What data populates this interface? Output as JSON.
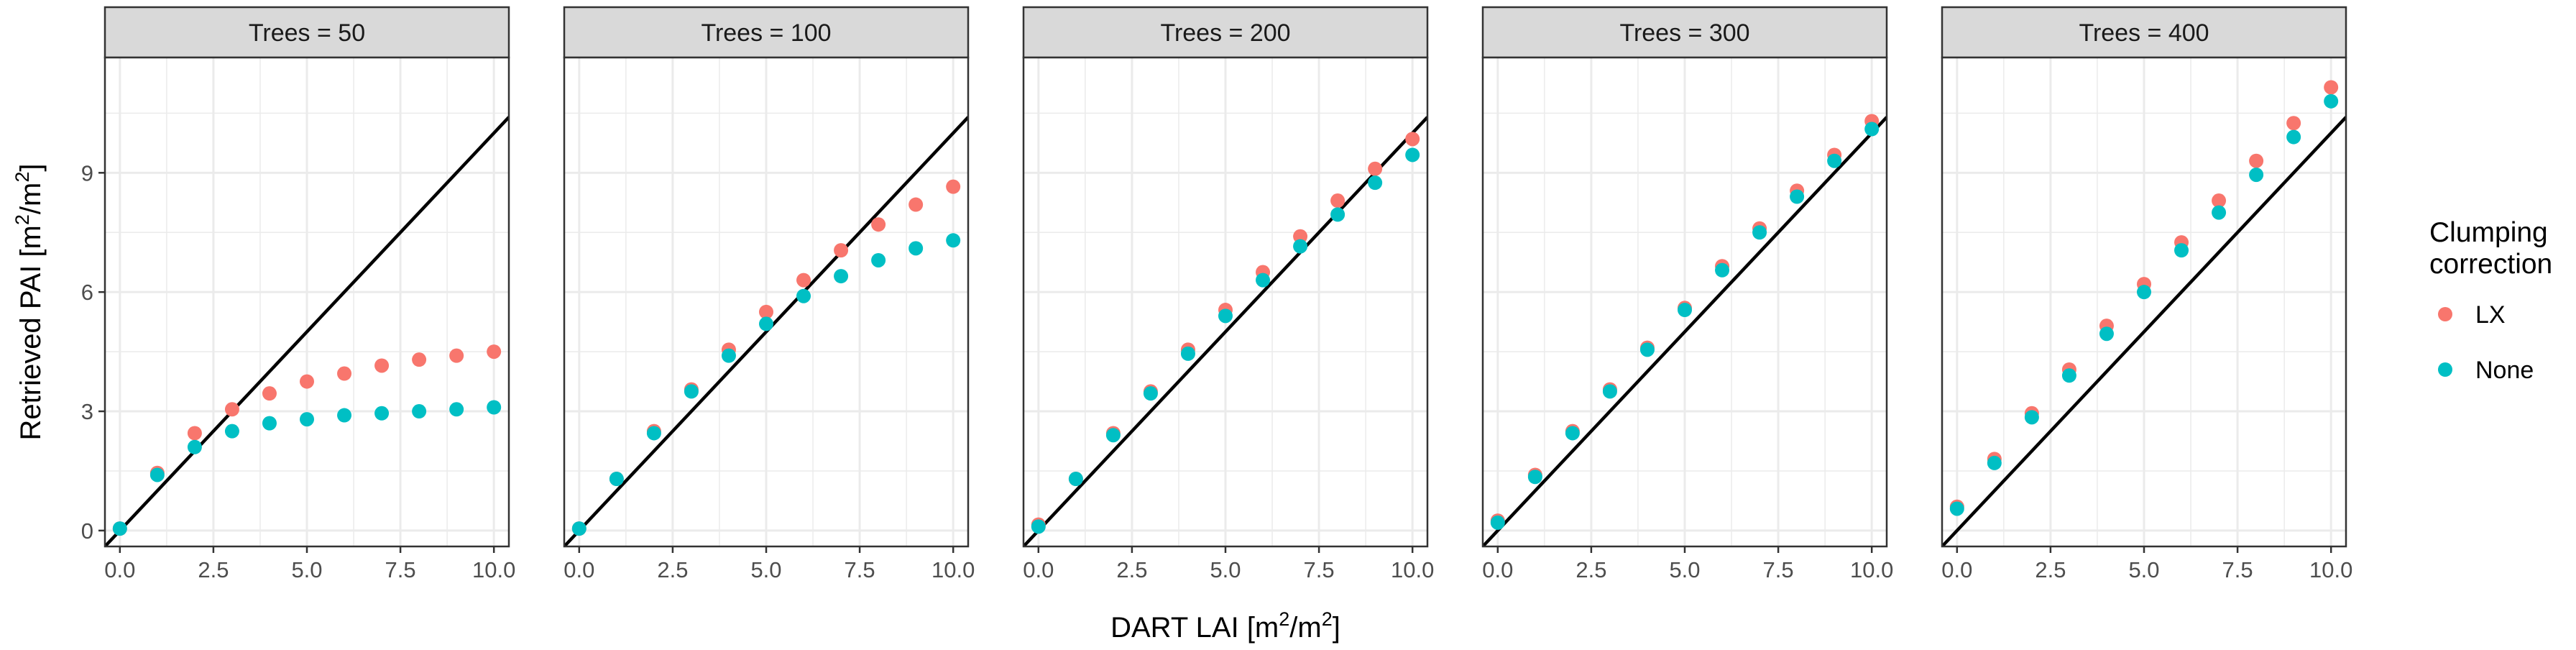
{
  "chart_data": {
    "type": "scatter",
    "facet_prefix": "Trees = ",
    "xlabel": "DART LAI [m",
    "ylabel": "Retrieved PAI [m",
    "unit_sup": "2",
    "unit_mid": "/m",
    "unit_end": "]",
    "xlim": [
      -0.4,
      10.4
    ],
    "ylim": [
      -0.4,
      11.9
    ],
    "x_ticks": [
      0,
      2.5,
      5,
      7.5,
      10
    ],
    "x_tick_labels": [
      "0.0",
      "2.5",
      "5.0",
      "7.5",
      "10.0"
    ],
    "y_ticks": [
      0,
      3,
      6,
      9
    ],
    "y_tick_labels": [
      "0",
      "3",
      "6",
      "9"
    ],
    "reference_line": "1:1",
    "grid": true,
    "legend": {
      "title_line1": "Clumping",
      "title_line2": "correction",
      "position": "right"
    },
    "colors": {
      "LX": "#F8766D",
      "None": "#00BFC4",
      "line": "#000000",
      "strip_bg": "#D9D9D9",
      "grid": "#EBEBEB"
    },
    "x": [
      0,
      1,
      2,
      3,
      4,
      5,
      6,
      7,
      8,
      9,
      10
    ],
    "facets": [
      {
        "trees": "50",
        "series": [
          {
            "name": "LX",
            "values": [
              0.05,
              1.45,
              2.45,
              3.05,
              3.45,
              3.75,
              3.95,
              4.15,
              4.3,
              4.4,
              4.5
            ]
          },
          {
            "name": "None",
            "values": [
              0.05,
              1.4,
              2.1,
              2.5,
              2.7,
              2.8,
              2.9,
              2.95,
              3.0,
              3.05,
              3.1
            ]
          }
        ]
      },
      {
        "trees": "100",
        "series": [
          {
            "name": "LX",
            "values": [
              0.05,
              1.3,
              2.5,
              3.55,
              4.55,
              5.5,
              6.3,
              7.05,
              7.7,
              8.2,
              8.65
            ]
          },
          {
            "name": "None",
            "values": [
              0.05,
              1.3,
              2.45,
              3.5,
              4.4,
              5.2,
              5.9,
              6.4,
              6.8,
              7.1,
              7.3
            ]
          }
        ]
      },
      {
        "trees": "200",
        "series": [
          {
            "name": "LX",
            "values": [
              0.15,
              1.3,
              2.45,
              3.5,
              4.55,
              5.55,
              6.5,
              7.4,
              8.3,
              9.1,
              9.85
            ]
          },
          {
            "name": "None",
            "values": [
              0.1,
              1.3,
              2.4,
              3.45,
              4.45,
              5.4,
              6.3,
              7.15,
              7.95,
              8.75,
              9.45
            ]
          }
        ]
      },
      {
        "trees": "300",
        "series": [
          {
            "name": "LX",
            "values": [
              0.25,
              1.4,
              2.5,
              3.55,
              4.6,
              5.6,
              6.65,
              7.6,
              8.55,
              9.45,
              10.3
            ]
          },
          {
            "name": "None",
            "values": [
              0.2,
              1.35,
              2.45,
              3.5,
              4.55,
              5.55,
              6.55,
              7.5,
              8.4,
              9.3,
              10.1
            ]
          }
        ]
      },
      {
        "trees": "400",
        "series": [
          {
            "name": "LX",
            "values": [
              0.6,
              1.8,
              2.95,
              4.05,
              5.15,
              6.2,
              7.25,
              8.3,
              9.3,
              10.25,
              11.15
            ]
          },
          {
            "name": "None",
            "values": [
              0.55,
              1.7,
              2.85,
              3.9,
              4.95,
              6.0,
              7.05,
              8.0,
              8.95,
              9.9,
              10.8
            ]
          }
        ]
      }
    ]
  }
}
